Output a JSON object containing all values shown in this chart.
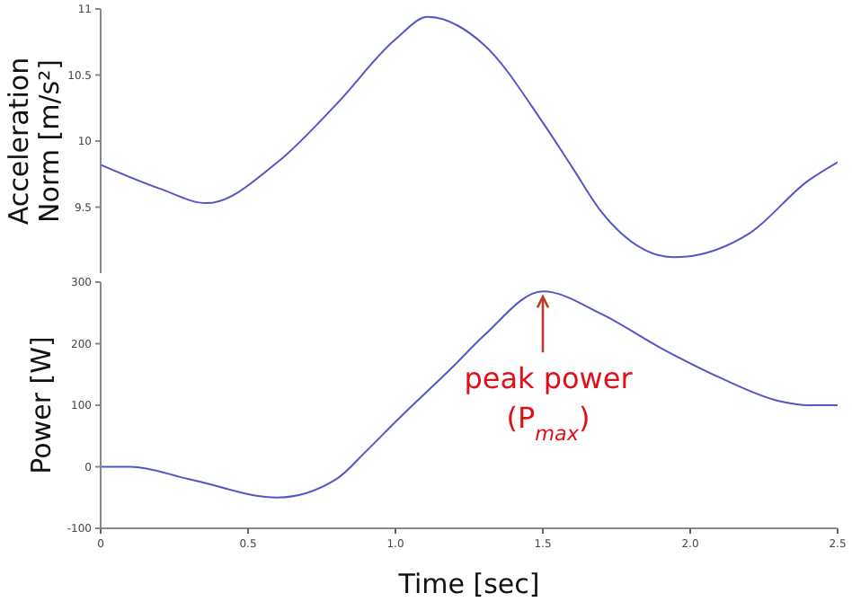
{
  "chart_data": [
    {
      "type": "line",
      "ylabel": "Acceleration Norm [m/s²]",
      "tick_labels": "y",
      "xlim": [
        0,
        2.5
      ],
      "xticks": [
        0,
        0.5,
        1,
        1.5,
        2,
        2.5
      ],
      "ylim": [
        9,
        11
      ],
      "yticks": [
        9.5,
        10,
        10.5,
        11
      ],
      "grid": false,
      "legend": false,
      "series": [
        {
          "color": "#5555c8",
          "x": [
            0,
            0.2,
            0.36,
            0.6,
            0.8,
            1.0,
            1.11,
            1.3,
            1.5,
            1.6,
            1.7,
            1.945,
            2.2,
            2.4,
            2.5
          ],
          "values": [
            9.82,
            9.64,
            9.53,
            9.84,
            10.28,
            10.77,
            10.94,
            10.73,
            10.14,
            9.8,
            9.46,
            9.12,
            9.3,
            9.7,
            9.84
          ]
        }
      ]
    },
    {
      "type": "line",
      "xlabel": "Time [sec]",
      "ylabel": "Power [W]",
      "xlim": [
        0,
        2.5
      ],
      "xticks": [
        0,
        0.5,
        {
          "value": 1,
          "label": "1.0"
        },
        1.5,
        {
          "value": 2,
          "label": "2.0"
        },
        2.5
      ],
      "ylim": [
        -100,
        300
      ],
      "yticks": [
        -100,
        0,
        100,
        200,
        300
      ],
      "grid": false,
      "legend": false,
      "annotations": [
        {
          "text": "peak power (P$_{max}$)",
          "x": 1.5,
          "y": 285
        }
      ],
      "series": [
        {
          "color": "#5555c8",
          "x": [
            0,
            0.1,
            0.3,
            0.6,
            0.8,
            0.9,
            1.0,
            1.2,
            1.3,
            1.5,
            1.7,
            1.9,
            2.1,
            2.3,
            2.4,
            2.5
          ],
          "values": [
            0,
            0,
            -20,
            -50,
            -20,
            25,
            73,
            165,
            213,
            285,
            248,
            193,
            145,
            107,
            100,
            100
          ]
        }
      ]
    }
  ]
}
